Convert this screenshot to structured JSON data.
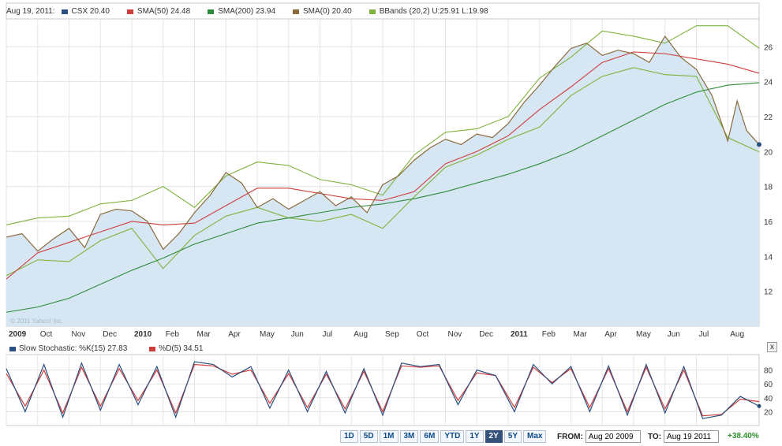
{
  "legend": {
    "date": "Aug 19, 2011:",
    "items": [
      {
        "label": "CSX 20.40",
        "color": "#2b4f7e"
      },
      {
        "label": "SMA(50) 24.48",
        "color": "#d03c3c"
      },
      {
        "label": "SMA(200) 23.94",
        "color": "#2e8b3c"
      },
      {
        "label": "SMA(0) 20.40",
        "color": "#8a6a3c"
      },
      {
        "label": "BBands (20,2) U:25.91 L:19.98",
        "color": "#7fb23c"
      }
    ]
  },
  "watermark": "© 2011 Yahoo! Inc.",
  "stoch_legend": [
    {
      "label": "Slow Stochastic: %K(15) 27.83",
      "color": "#2b4f7e"
    },
    {
      "label": "%D(5) 34.51",
      "color": "#d03c3c"
    }
  ],
  "close_label": "x",
  "controls": {
    "ranges": [
      "1D",
      "5D",
      "1M",
      "3M",
      "6M",
      "YTD",
      "1Y",
      "2Y",
      "5Y",
      "Max"
    ],
    "active_range": "2Y",
    "from_label": "FROM:",
    "from_value": "Aug 20 2009",
    "to_label": "TO:",
    "to_value": "Aug 19 2011",
    "change": "+38.40%"
  },
  "chart_data": [
    {
      "type": "area",
      "x_labels": [
        "2009",
        "Oct",
        "Nov",
        "Dec",
        "2010",
        "Feb",
        "Mar",
        "Apr",
        "May",
        "Jun",
        "Jul",
        "Aug",
        "Sep",
        "Oct",
        "Nov",
        "Dec",
        "2011",
        "Feb",
        "Mar",
        "Apr",
        "May",
        "Jun",
        "Jul",
        "Aug"
      ],
      "ylim": [
        10,
        27.5
      ],
      "y_ticks": [
        12,
        14,
        16,
        18,
        20,
        22,
        24,
        26
      ],
      "grid": true,
      "x_range": [
        0,
        24
      ],
      "series": [
        {
          "name": "CSX",
          "color": "#8a6a3c",
          "x": [
            0,
            0.5,
            1,
            1.5,
            2,
            2.5,
            3,
            3.5,
            4,
            4.5,
            5,
            5.5,
            6,
            6.5,
            7,
            7.5,
            8,
            8.5,
            9,
            9.5,
            10,
            10.5,
            11,
            11.5,
            12,
            12.5,
            13,
            13.5,
            14,
            14.5,
            15,
            15.5,
            16,
            16.5,
            17,
            17.5,
            18,
            18.5,
            19,
            19.5,
            20,
            20.5,
            21,
            21.5,
            22,
            22.5,
            23,
            23.3,
            23.6,
            24
          ],
          "values": [
            15.1,
            15.3,
            14.3,
            15.0,
            15.6,
            14.5,
            16.4,
            16.7,
            16.6,
            16.0,
            14.4,
            15.3,
            16.5,
            17.5,
            18.8,
            18.2,
            16.8,
            17.3,
            16.7,
            17.2,
            17.7,
            16.9,
            17.4,
            16.5,
            18.1,
            18.6,
            19.5,
            20.2,
            20.7,
            20.4,
            21.0,
            20.8,
            21.6,
            22.8,
            23.8,
            24.9,
            25.9,
            26.2,
            25.5,
            25.8,
            25.6,
            25.1,
            26.6,
            25.4,
            24.7,
            23.2,
            20.6,
            22.9,
            21.2,
            20.4
          ]
        },
        {
          "name": "SMA(50)",
          "color": "#d03c3c",
          "x": [
            0,
            1,
            2,
            3,
            4,
            5,
            6,
            7,
            8,
            9,
            10,
            11,
            12,
            13,
            14,
            15,
            16,
            17,
            18,
            19,
            20,
            21,
            22,
            23,
            24
          ],
          "values": [
            12.7,
            14.2,
            14.8,
            15.4,
            16.0,
            15.8,
            15.9,
            16.9,
            17.9,
            17.9,
            17.6,
            17.3,
            17.2,
            17.7,
            19.3,
            20.0,
            20.9,
            22.4,
            23.7,
            25.1,
            25.7,
            25.6,
            25.3,
            25.0,
            24.48
          ]
        },
        {
          "name": "SMA(200)",
          "color": "#2e8b3c",
          "x": [
            0,
            1,
            2,
            3,
            4,
            5,
            6,
            7,
            8,
            9,
            10,
            11,
            12,
            13,
            14,
            15,
            16,
            17,
            18,
            19,
            20,
            21,
            22,
            23,
            24
          ],
          "values": [
            10.8,
            11.1,
            11.6,
            12.4,
            13.2,
            13.9,
            14.7,
            15.3,
            15.9,
            16.2,
            16.5,
            16.8,
            17.0,
            17.3,
            17.7,
            18.2,
            18.7,
            19.3,
            20.0,
            20.9,
            21.8,
            22.7,
            23.4,
            23.8,
            23.94
          ]
        },
        {
          "name": "BBands Upper",
          "color": "#7fb23c",
          "x": [
            0,
            1,
            2,
            3,
            4,
            5,
            6,
            7,
            8,
            9,
            10,
            11,
            12,
            13,
            14,
            15,
            16,
            17,
            18,
            19,
            20,
            21,
            22,
            23,
            24
          ],
          "values": [
            15.8,
            16.2,
            16.3,
            17.0,
            17.2,
            18.0,
            16.8,
            18.6,
            19.4,
            19.2,
            18.4,
            18.1,
            17.5,
            19.8,
            21.1,
            21.3,
            22.0,
            24.2,
            25.4,
            26.9,
            26.6,
            26.2,
            27.2,
            27.2,
            25.91
          ]
        },
        {
          "name": "BBands Lower",
          "color": "#7fb23c",
          "x": [
            0,
            1,
            2,
            3,
            4,
            5,
            6,
            7,
            8,
            9,
            10,
            11,
            12,
            13,
            14,
            15,
            16,
            17,
            18,
            19,
            20,
            21,
            22,
            23,
            24
          ],
          "values": [
            12.9,
            13.8,
            13.7,
            14.9,
            15.6,
            13.3,
            15.2,
            16.3,
            16.8,
            16.2,
            16.0,
            16.4,
            15.6,
            17.4,
            19.1,
            19.8,
            20.7,
            21.4,
            23.2,
            24.3,
            24.8,
            24.4,
            24.3,
            20.8,
            19.98
          ]
        }
      ]
    },
    {
      "type": "line",
      "ylim": [
        0,
        100
      ],
      "y_ticks": [
        20,
        40,
        60,
        80
      ],
      "grid": true,
      "x_range": [
        0,
        24
      ],
      "series": [
        {
          "name": "%K(15)",
          "color": "#2b4f7e",
          "x": [
            0,
            0.6,
            1.2,
            1.8,
            2.4,
            3.0,
            3.6,
            4.2,
            4.8,
            5.4,
            6.0,
            6.6,
            7.2,
            7.8,
            8.4,
            9.0,
            9.6,
            10.2,
            10.8,
            11.4,
            12.0,
            12.6,
            13.2,
            13.8,
            14.4,
            15.0,
            15.6,
            16.2,
            16.8,
            17.4,
            18.0,
            18.6,
            19.2,
            19.8,
            20.4,
            21.0,
            21.6,
            22.2,
            22.8,
            23.4,
            24
          ],
          "values": [
            82,
            20,
            88,
            12,
            90,
            22,
            88,
            30,
            85,
            12,
            92,
            88,
            70,
            85,
            25,
            80,
            20,
            78,
            18,
            82,
            15,
            90,
            85,
            88,
            30,
            80,
            72,
            20,
            88,
            60,
            85,
            20,
            86,
            15,
            88,
            18,
            85,
            10,
            15,
            42,
            28
          ]
        },
        {
          "name": "%D(5)",
          "color": "#d03c3c",
          "x": [
            0,
            0.6,
            1.2,
            1.8,
            2.4,
            3.0,
            3.6,
            4.2,
            4.8,
            5.4,
            6.0,
            6.6,
            7.2,
            7.8,
            8.4,
            9.0,
            9.6,
            10.2,
            10.8,
            11.4,
            12.0,
            12.6,
            13.2,
            13.8,
            14.4,
            15.0,
            15.6,
            16.2,
            16.8,
            17.4,
            18.0,
            18.6,
            19.2,
            19.8,
            20.4,
            21.0,
            21.6,
            22.2,
            22.8,
            23.4,
            24
          ],
          "values": [
            75,
            28,
            80,
            18,
            84,
            28,
            82,
            36,
            80,
            18,
            88,
            86,
            74,
            80,
            32,
            75,
            26,
            74,
            24,
            78,
            20,
            86,
            84,
            86,
            36,
            76,
            72,
            26,
            84,
            62,
            82,
            26,
            82,
            20,
            84,
            24,
            80,
            14,
            16,
            38,
            34.5
          ]
        }
      ]
    }
  ]
}
